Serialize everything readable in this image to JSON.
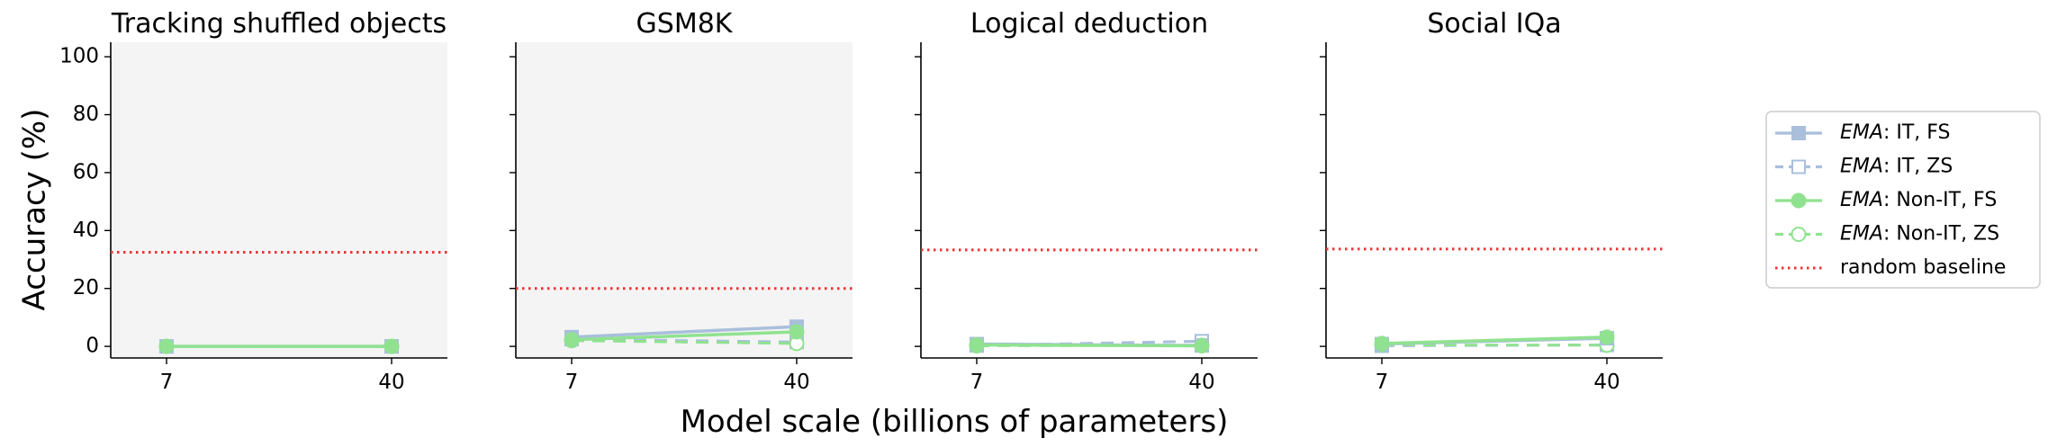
{
  "figure": {
    "ylabel": "Accuracy (%)",
    "xlabel": "Model scale (billions of parameters)"
  },
  "legend": {
    "placement": "right",
    "entries": [
      {
        "key": "ema_it_fs",
        "prefix": "EMA",
        "suffix": ": IT, FS",
        "color": "#a9bfdc",
        "marker": "square",
        "filled": true,
        "dashed": false
      },
      {
        "key": "ema_it_zs",
        "prefix": "EMA",
        "suffix": ": IT, ZS",
        "color": "#a9bfdc",
        "marker": "square",
        "filled": false,
        "dashed": true
      },
      {
        "key": "ema_nonit_fs",
        "prefix": "EMA",
        "suffix": ": Non-IT, FS",
        "color": "#90e290",
        "marker": "circle",
        "filled": true,
        "dashed": false
      },
      {
        "key": "ema_nonit_zs",
        "prefix": "EMA",
        "suffix": ": Non-IT, ZS",
        "color": "#90e290",
        "marker": "circle",
        "filled": false,
        "dashed": true
      },
      {
        "key": "random",
        "prefix": "",
        "suffix": "random baseline",
        "color": "#ee3333",
        "marker": "none",
        "filled": false,
        "dashed": true
      }
    ]
  },
  "chart_data": [
    {
      "type": "line",
      "title": "Tracking shuffled objects",
      "highlight_background": true,
      "x": [
        7,
        40
      ],
      "xticks": [
        "7",
        "40"
      ],
      "ylim": [
        -4,
        105
      ],
      "yticks": [
        0,
        20,
        40,
        60,
        80,
        100
      ],
      "show_ytick_labels": true,
      "random_baseline": 32.5,
      "series": [
        {
          "key": "ema_it_fs",
          "values": [
            0,
            0
          ]
        },
        {
          "key": "ema_it_zs",
          "values": [
            0,
            0
          ]
        },
        {
          "key": "ema_nonit_fs",
          "values": [
            0,
            0
          ]
        },
        {
          "key": "ema_nonit_zs",
          "values": [
            0,
            0
          ]
        }
      ]
    },
    {
      "type": "line",
      "title": "GSM8K",
      "highlight_background": true,
      "x": [
        7,
        40
      ],
      "xticks": [
        "7",
        "40"
      ],
      "ylim": [
        -4,
        105
      ],
      "yticks": [
        0,
        20,
        40,
        60,
        80,
        100
      ],
      "show_ytick_labels": false,
      "random_baseline": 20,
      "series": [
        {
          "key": "ema_it_fs",
          "values": [
            3.2,
            6.8
          ]
        },
        {
          "key": "ema_it_zs",
          "values": [
            2.5,
            1.5
          ]
        },
        {
          "key": "ema_nonit_fs",
          "values": [
            2.3,
            5.0
          ]
        },
        {
          "key": "ema_nonit_zs",
          "values": [
            2.0,
            1.0
          ]
        }
      ]
    },
    {
      "type": "line",
      "title": "Logical deduction",
      "highlight_background": false,
      "x": [
        7,
        40
      ],
      "xticks": [
        "7",
        "40"
      ],
      "ylim": [
        -4,
        105
      ],
      "yticks": [
        0,
        20,
        40,
        60,
        80,
        100
      ],
      "show_ytick_labels": false,
      "random_baseline": 33.3,
      "series": [
        {
          "key": "ema_it_fs",
          "values": [
            0.8,
            0.3
          ]
        },
        {
          "key": "ema_it_zs",
          "values": [
            0.3,
            1.8
          ]
        },
        {
          "key": "ema_nonit_fs",
          "values": [
            0.5,
            0.2
          ]
        },
        {
          "key": "ema_nonit_zs",
          "values": [
            0.2,
            0.4
          ]
        }
      ]
    },
    {
      "type": "line",
      "title": "Social IQa",
      "highlight_background": false,
      "x": [
        7,
        40
      ],
      "xticks": [
        "7",
        "40"
      ],
      "ylim": [
        -4,
        105
      ],
      "yticks": [
        0,
        20,
        40,
        60,
        80,
        100
      ],
      "show_ytick_labels": false,
      "random_baseline": 33.6,
      "series": [
        {
          "key": "ema_it_fs",
          "values": [
            0.8,
            2.8
          ]
        },
        {
          "key": "ema_it_zs",
          "values": [
            0.2,
            0.5
          ]
        },
        {
          "key": "ema_nonit_fs",
          "values": [
            1.0,
            3.2
          ]
        },
        {
          "key": "ema_nonit_zs",
          "values": [
            0.5,
            0.4
          ]
        }
      ]
    }
  ]
}
